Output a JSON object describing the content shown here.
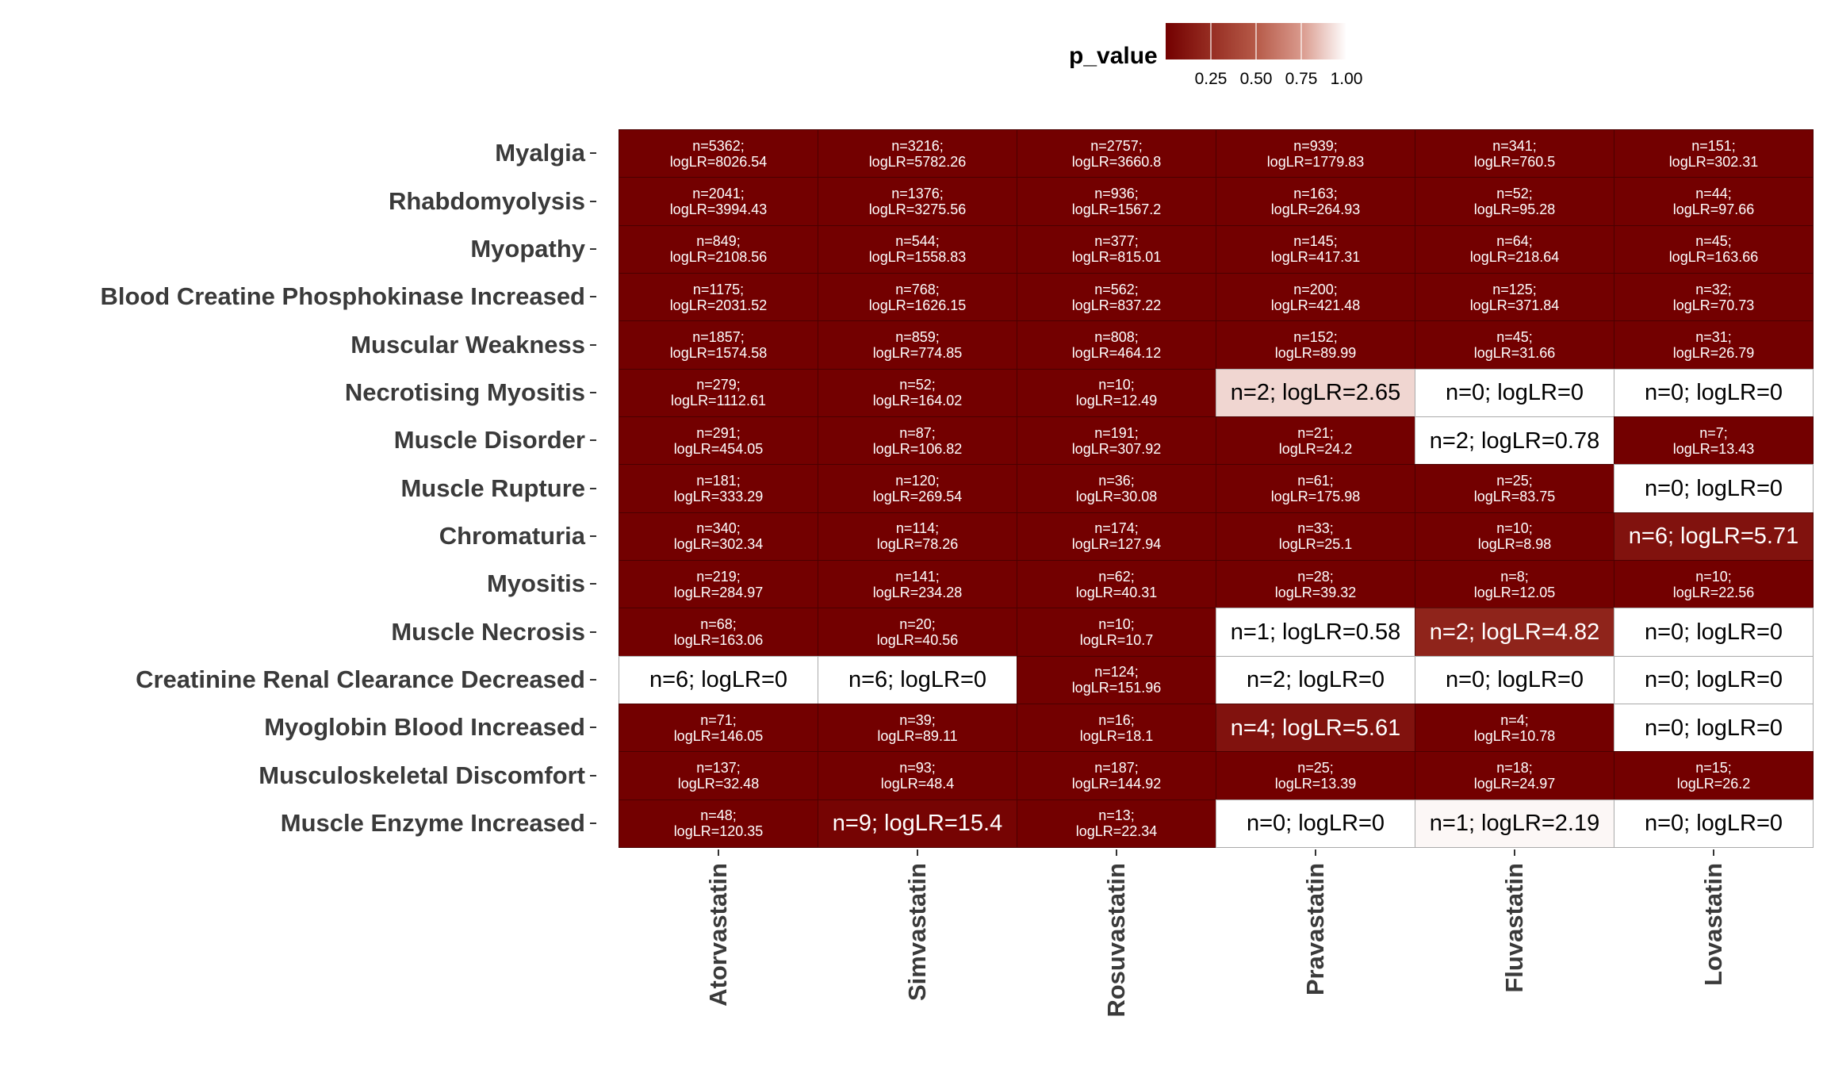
{
  "chart_data": {
    "type": "heatmap",
    "legend": {
      "title": "p_value",
      "ticks": [
        "0.25",
        "0.50",
        "0.75",
        "1.00"
      ],
      "tick_values": [
        0.25,
        0.5,
        0.75,
        1.0
      ],
      "range": [
        0,
        1
      ],
      "colors": {
        "low": "#730000",
        "high": "#ffffff"
      },
      "placement": "top"
    },
    "columns": [
      "Atorvastatin",
      "Simvastatin",
      "Rosuvastatin",
      "Pravastatin",
      "Fluvastatin",
      "Lovastatin"
    ],
    "rows": [
      {
        "label": "Myalgia",
        "cells": [
          {
            "n": "n=5362;",
            "lr": "logLR=8026.54",
            "p": 0
          },
          {
            "n": "n=3216;",
            "lr": "logLR=5782.26",
            "p": 0
          },
          {
            "n": "n=2757;",
            "lr": "logLR=3660.8",
            "p": 0
          },
          {
            "n": "n=939;",
            "lr": "logLR=1779.83",
            "p": 0
          },
          {
            "n": "n=341;",
            "lr": "logLR=760.5",
            "p": 0
          },
          {
            "n": "n=151;",
            "lr": "logLR=302.31",
            "p": 0
          }
        ]
      },
      {
        "label": "Rhabdomyolysis",
        "cells": [
          {
            "n": "n=2041;",
            "lr": "logLR=3994.43",
            "p": 0
          },
          {
            "n": "n=1376;",
            "lr": "logLR=3275.56",
            "p": 0
          },
          {
            "n": "n=936;",
            "lr": "logLR=1567.2",
            "p": 0
          },
          {
            "n": "n=163;",
            "lr": "logLR=264.93",
            "p": 0
          },
          {
            "n": "n=52;",
            "lr": "logLR=95.28",
            "p": 0
          },
          {
            "n": "n=44;",
            "lr": "logLR=97.66",
            "p": 0
          }
        ]
      },
      {
        "label": "Myopathy",
        "cells": [
          {
            "n": "n=849;",
            "lr": "logLR=2108.56",
            "p": 0
          },
          {
            "n": "n=544;",
            "lr": "logLR=1558.83",
            "p": 0
          },
          {
            "n": "n=377;",
            "lr": "logLR=815.01",
            "p": 0
          },
          {
            "n": "n=145;",
            "lr": "logLR=417.31",
            "p": 0
          },
          {
            "n": "n=64;",
            "lr": "logLR=218.64",
            "p": 0
          },
          {
            "n": "n=45;",
            "lr": "logLR=163.66",
            "p": 0
          }
        ]
      },
      {
        "label": "Blood Creatine Phosphokinase Increased",
        "cells": [
          {
            "n": "n=1175;",
            "lr": "logLR=2031.52",
            "p": 0
          },
          {
            "n": "n=768;",
            "lr": "logLR=1626.15",
            "p": 0
          },
          {
            "n": "n=562;",
            "lr": "logLR=837.22",
            "p": 0
          },
          {
            "n": "n=200;",
            "lr": "logLR=421.48",
            "p": 0
          },
          {
            "n": "n=125;",
            "lr": "logLR=371.84",
            "p": 0
          },
          {
            "n": "n=32;",
            "lr": "logLR=70.73",
            "p": 0
          }
        ]
      },
      {
        "label": "Muscular Weakness",
        "cells": [
          {
            "n": "n=1857;",
            "lr": "logLR=1574.58",
            "p": 0
          },
          {
            "n": "n=859;",
            "lr": "logLR=774.85",
            "p": 0
          },
          {
            "n": "n=808;",
            "lr": "logLR=464.12",
            "p": 0
          },
          {
            "n": "n=152;",
            "lr": "logLR=89.99",
            "p": 0
          },
          {
            "n": "n=45;",
            "lr": "logLR=31.66",
            "p": 0
          },
          {
            "n": "n=31;",
            "lr": "logLR=26.79",
            "p": 0
          }
        ]
      },
      {
        "label": "Necrotising Myositis",
        "cells": [
          {
            "n": "n=279;",
            "lr": "logLR=1112.61",
            "p": 0
          },
          {
            "n": "n=52;",
            "lr": "logLR=164.02",
            "p": 0
          },
          {
            "n": "n=10;",
            "lr": "logLR=12.49",
            "p": 0
          },
          {
            "n": "n=2;",
            "lr": "logLR=2.65",
            "p": 0.9
          },
          {
            "n": "n=0;",
            "lr": "logLR=0",
            "p": 1
          },
          {
            "n": "n=0;",
            "lr": "logLR=0",
            "p": 1
          }
        ]
      },
      {
        "label": "Muscle Disorder",
        "cells": [
          {
            "n": "n=291;",
            "lr": "logLR=454.05",
            "p": 0
          },
          {
            "n": "n=87;",
            "lr": "logLR=106.82",
            "p": 0
          },
          {
            "n": "n=191;",
            "lr": "logLR=307.92",
            "p": 0
          },
          {
            "n": "n=21;",
            "lr": "logLR=24.2",
            "p": 0
          },
          {
            "n": "n=2;",
            "lr": "logLR=0.78",
            "p": 1
          },
          {
            "n": "n=7;",
            "lr": "logLR=13.43",
            "p": 0
          }
        ]
      },
      {
        "label": "Muscle Rupture",
        "cells": [
          {
            "n": "n=181;",
            "lr": "logLR=333.29",
            "p": 0
          },
          {
            "n": "n=120;",
            "lr": "logLR=269.54",
            "p": 0
          },
          {
            "n": "n=36;",
            "lr": "logLR=30.08",
            "p": 0
          },
          {
            "n": "n=61;",
            "lr": "logLR=175.98",
            "p": 0
          },
          {
            "n": "n=25;",
            "lr": "logLR=83.75",
            "p": 0
          },
          {
            "n": "n=0;",
            "lr": "logLR=0",
            "p": 1
          }
        ]
      },
      {
        "label": "Chromaturia",
        "cells": [
          {
            "n": "n=340;",
            "lr": "logLR=302.34",
            "p": 0
          },
          {
            "n": "n=114;",
            "lr": "logLR=78.26",
            "p": 0
          },
          {
            "n": "n=174;",
            "lr": "logLR=127.94",
            "p": 0
          },
          {
            "n": "n=33;",
            "lr": "logLR=25.1",
            "p": 0
          },
          {
            "n": "n=10;",
            "lr": "logLR=8.98",
            "p": 0
          },
          {
            "n": "n=6;",
            "lr": "logLR=5.71",
            "p": 0.1
          }
        ]
      },
      {
        "label": "Myositis",
        "cells": [
          {
            "n": "n=219;",
            "lr": "logLR=284.97",
            "p": 0
          },
          {
            "n": "n=141;",
            "lr": "logLR=234.28",
            "p": 0
          },
          {
            "n": "n=62;",
            "lr": "logLR=40.31",
            "p": 0
          },
          {
            "n": "n=28;",
            "lr": "logLR=39.32",
            "p": 0
          },
          {
            "n": "n=8;",
            "lr": "logLR=12.05",
            "p": 0
          },
          {
            "n": "n=10;",
            "lr": "logLR=22.56",
            "p": 0
          }
        ]
      },
      {
        "label": "Muscle Necrosis",
        "cells": [
          {
            "n": "n=68;",
            "lr": "logLR=163.06",
            "p": 0
          },
          {
            "n": "n=20;",
            "lr": "logLR=40.56",
            "p": 0
          },
          {
            "n": "n=10;",
            "lr": "logLR=10.7",
            "p": 0
          },
          {
            "n": "n=1;",
            "lr": "logLR=0.58",
            "p": 1
          },
          {
            "n": "n=2;",
            "lr": "logLR=4.82",
            "p": 0.2
          },
          {
            "n": "n=0;",
            "lr": "logLR=0",
            "p": 1
          }
        ]
      },
      {
        "label": "Creatinine Renal Clearance Decreased",
        "cells": [
          {
            "n": "n=6;",
            "lr": "logLR=0",
            "p": 1
          },
          {
            "n": "n=6;",
            "lr": "logLR=0",
            "p": 1
          },
          {
            "n": "n=124;",
            "lr": "logLR=151.96",
            "p": 0
          },
          {
            "n": "n=2;",
            "lr": "logLR=0",
            "p": 1
          },
          {
            "n": "n=0;",
            "lr": "logLR=0",
            "p": 1
          },
          {
            "n": "n=0;",
            "lr": "logLR=0",
            "p": 1
          }
        ]
      },
      {
        "label": "Myoglobin Blood Increased",
        "cells": [
          {
            "n": "n=71;",
            "lr": "logLR=146.05",
            "p": 0
          },
          {
            "n": "n=39;",
            "lr": "logLR=89.11",
            "p": 0
          },
          {
            "n": "n=16;",
            "lr": "logLR=18.1",
            "p": 0
          },
          {
            "n": "n=4;",
            "lr": "logLR=5.61",
            "p": 0.1
          },
          {
            "n": "n=4;",
            "lr": "logLR=10.78",
            "p": 0
          },
          {
            "n": "n=0;",
            "lr": "logLR=0",
            "p": 1
          }
        ]
      },
      {
        "label": "Musculoskeletal Discomfort",
        "cells": [
          {
            "n": "n=137;",
            "lr": "logLR=32.48",
            "p": 0
          },
          {
            "n": "n=93;",
            "lr": "logLR=48.4",
            "p": 0
          },
          {
            "n": "n=187;",
            "lr": "logLR=144.92",
            "p": 0
          },
          {
            "n": "n=25;",
            "lr": "logLR=13.39",
            "p": 0
          },
          {
            "n": "n=18;",
            "lr": "logLR=24.97",
            "p": 0
          },
          {
            "n": "n=15;",
            "lr": "logLR=26.2",
            "p": 0
          }
        ]
      },
      {
        "label": "Muscle Enzyme Increased",
        "cells": [
          {
            "n": "n=48;",
            "lr": "logLR=120.35",
            "p": 0
          },
          {
            "n": "n=9;",
            "lr": "logLR=15.4",
            "p": 0.02
          },
          {
            "n": "n=13;",
            "lr": "logLR=22.34",
            "p": 0
          },
          {
            "n": "n=0;",
            "lr": "logLR=0",
            "p": 1
          },
          {
            "n": "n=1;",
            "lr": "logLR=2.19",
            "p": 0.98
          },
          {
            "n": "n=0;",
            "lr": "logLR=0",
            "p": 1
          }
        ]
      }
    ]
  }
}
